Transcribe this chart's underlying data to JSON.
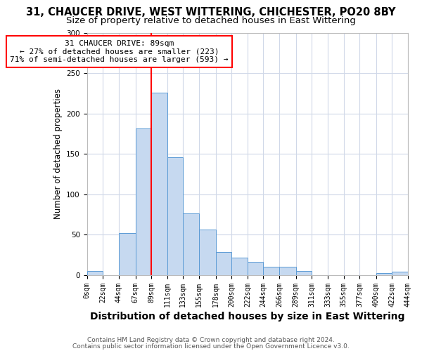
{
  "title": "31, CHAUCER DRIVE, WEST WITTERING, CHICHESTER, PO20 8BY",
  "subtitle": "Size of property relative to detached houses in East Wittering",
  "xlabel": "Distribution of detached houses by size in East Wittering",
  "ylabel": "Number of detached properties",
  "bar_edges": [
    0,
    22,
    44,
    67,
    89,
    111,
    133,
    155,
    178,
    200,
    222,
    244,
    266,
    289,
    311,
    333,
    355,
    377,
    400,
    422,
    444
  ],
  "bar_heights": [
    5,
    0,
    52,
    181,
    226,
    146,
    76,
    56,
    28,
    21,
    16,
    10,
    10,
    5,
    0,
    0,
    0,
    0,
    2,
    4
  ],
  "bar_color": "#c6d9f0",
  "bar_edge_color": "#5b9bd5",
  "vline_x": 89,
  "vline_color": "red",
  "annotation_title": "31 CHAUCER DRIVE: 89sqm",
  "annotation_line1": "← 27% of detached houses are smaller (223)",
  "annotation_line2": "71% of semi-detached houses are larger (593) →",
  "annotation_box_color": "white",
  "annotation_box_edge": "red",
  "ylim": [
    0,
    300
  ],
  "xlim": [
    0,
    444
  ],
  "tick_labels": [
    "0sqm",
    "22sqm",
    "44sqm",
    "67sqm",
    "89sqm",
    "111sqm",
    "133sqm",
    "155sqm",
    "178sqm",
    "200sqm",
    "222sqm",
    "244sqm",
    "266sqm",
    "289sqm",
    "311sqm",
    "333sqm",
    "355sqm",
    "377sqm",
    "400sqm",
    "422sqm",
    "444sqm"
  ],
  "tick_positions": [
    0,
    22,
    44,
    67,
    89,
    111,
    133,
    155,
    178,
    200,
    222,
    244,
    266,
    289,
    311,
    333,
    355,
    377,
    400,
    422,
    444
  ],
  "footer1": "Contains HM Land Registry data © Crown copyright and database right 2024.",
  "footer2": "Contains public sector information licensed under the Open Government Licence v3.0.",
  "title_fontsize": 10.5,
  "subtitle_fontsize": 9.5,
  "xlabel_fontsize": 10,
  "ylabel_fontsize": 8.5,
  "tick_fontsize": 7,
  "footer_fontsize": 6.5,
  "bg_color": "#ffffff",
  "grid_color": "#d0d8e8"
}
